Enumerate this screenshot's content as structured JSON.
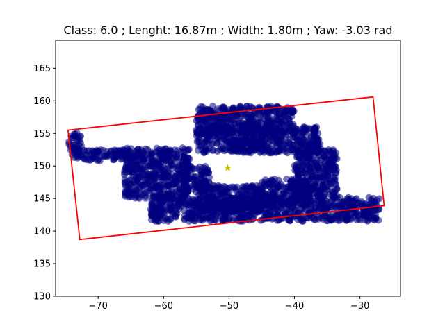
{
  "chart_data": {
    "type": "scatter",
    "title": "Class: 6.0 ; Lenght: 16.87m ; Width: 1.80m ; Yaw: -3.03 rad",
    "xlabel": "",
    "ylabel": "",
    "xlim": [
      -76.5,
      -23.8
    ],
    "ylim": [
      130,
      169.3
    ],
    "x_ticks": [
      -70,
      -60,
      -50,
      -40,
      -30
    ],
    "y_ticks": [
      130,
      135,
      140,
      145,
      150,
      155,
      160,
      165
    ],
    "grid": false,
    "point_color": "#00007f",
    "box_color": "#ff0000",
    "center_color": "#bfbf00",
    "bounding_box": {
      "corners": [
        [
          -74.6,
          155.5
        ],
        [
          -28.0,
          160.6
        ],
        [
          -26.3,
          143.9
        ],
        [
          -72.8,
          138.7
        ]
      ]
    },
    "center": {
      "x": -50.2,
      "y": 149.7
    },
    "point_clusters": [
      {
        "x": [
          -74.5,
          -72.5
        ],
        "y": [
          151.2,
          155.1
        ]
      },
      {
        "x": [
          -73.0,
          -63.5
        ],
        "y": [
          150.8,
          152.5
        ]
      },
      {
        "x": [
          -66.0,
          -56.0
        ],
        "y": [
          145.0,
          152.8
        ]
      },
      {
        "x": [
          -57.0,
          -53.0
        ],
        "y": [
          146.0,
          150.0
        ]
      },
      {
        "x": [
          -55.0,
          -40.0
        ],
        "y": [
          155.0,
          159.2
        ]
      },
      {
        "x": [
          -55.0,
          -36.0
        ],
        "y": [
          152.0,
          156.0
        ]
      },
      {
        "x": [
          -50.0,
          -44.5
        ],
        "y": [
          152.0,
          154.0
        ]
      },
      {
        "x": [
          -40.0,
          -33.5
        ],
        "y": [
          145.0,
          152.5
        ]
      },
      {
        "x": [
          -45.0,
          -37.5
        ],
        "y": [
          144.0,
          148.0
        ]
      },
      {
        "x": [
          -62.0,
          -27.0
        ],
        "y": [
          141.5,
          145.2
        ]
      },
      {
        "x": [
          -55.0,
          -45.0
        ],
        "y": [
          143.0,
          147.0
        ]
      }
    ]
  }
}
